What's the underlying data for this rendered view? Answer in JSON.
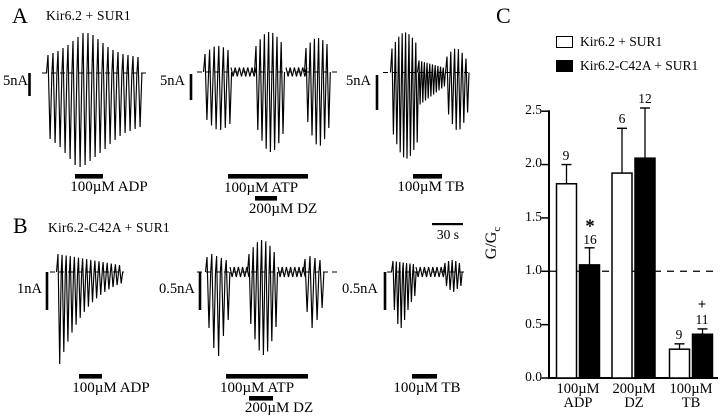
{
  "panel_a": {
    "letter": "A",
    "title": "Kir6.2 + SUR1",
    "traces": [
      {
        "scale_label": "5nA",
        "drugs": [
          "100µM ADP"
        ]
      },
      {
        "scale_label": "5nA",
        "drugs": [
          "100µM ATP",
          "200µM DZ"
        ]
      },
      {
        "scale_label": "5nA",
        "drugs": [
          "100µM TB"
        ]
      }
    ]
  },
  "panel_b": {
    "letter": "B",
    "title": "Kir6.2-C42A + SUR1",
    "time_scale_label": "30 s",
    "traces": [
      {
        "scale_label": "1nA",
        "drugs": [
          "100µM ADP"
        ]
      },
      {
        "scale_label": "0.5nA",
        "drugs": [
          "100µM ATP",
          "200µM DZ"
        ]
      },
      {
        "scale_label": "0.5nA",
        "drugs": [
          "100µM TB"
        ]
      }
    ]
  },
  "panel_c": {
    "letter": "C",
    "ylabel_main": "G/G",
    "ylabel_sub": "c"
  },
  "chart_data": {
    "type": "bar",
    "title": "",
    "ylabel": "G/Gc",
    "ylim": [
      0,
      2.5
    ],
    "yticks": [
      "0.0",
      "0.5",
      "1.0",
      "1.5",
      "2.0",
      "2.5"
    ],
    "reference_line": 1.0,
    "grid": false,
    "legend_position": "top",
    "categories": [
      {
        "line1": "100µM",
        "line2": "ADP"
      },
      {
        "line1": "200µM",
        "line2": "DZ"
      },
      {
        "line1": "100µM",
        "line2": "TB"
      }
    ],
    "series": [
      {
        "name": "Kir6.2 + SUR1",
        "fill": "#ffffff",
        "values": [
          1.82,
          1.92,
          0.27
        ],
        "errors": [
          0.18,
          0.42,
          0.05
        ],
        "n": [
          "9",
          "6",
          "9"
        ],
        "annotations": [
          "",
          "",
          ""
        ]
      },
      {
        "name": "Kir6.2-C42A + SUR1",
        "fill": "#000000",
        "values": [
          1.06,
          2.06,
          0.41
        ],
        "errors": [
          0.16,
          0.47,
          0.05
        ],
        "n": [
          "16",
          "12",
          "11"
        ],
        "annotations": [
          "*",
          "",
          "+"
        ]
      }
    ]
  }
}
